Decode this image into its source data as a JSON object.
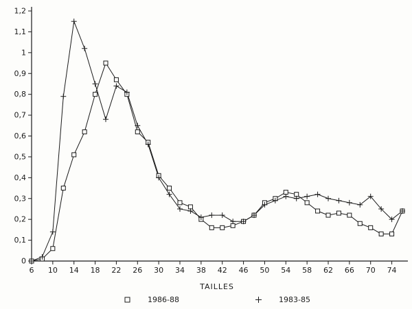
{
  "chart_data": {
    "type": "line",
    "title": "",
    "xlabel": "TAILLES",
    "ylabel": "",
    "xlim": [
      6,
      76
    ],
    "ylim": [
      0,
      1.2
    ],
    "grid": false,
    "legend_position": "bottom",
    "line_color": "#1a1a1a",
    "background": "#fdfdfb",
    "x_tick_labels": [
      "6",
      "10",
      "14",
      "18",
      "22",
      "26",
      "30",
      "34",
      "38",
      "42",
      "46",
      "50",
      "54",
      "58",
      "62",
      "66",
      "70",
      "74"
    ],
    "x_tick_values": [
      6,
      10,
      14,
      18,
      22,
      26,
      30,
      34,
      38,
      42,
      46,
      50,
      54,
      58,
      62,
      66,
      70,
      74
    ],
    "y_tick_values": [
      0,
      0.1,
      0.2,
      0.3,
      0.4,
      0.5,
      0.6,
      0.7,
      0.8,
      0.9,
      1.0,
      1.1,
      1.2
    ],
    "y_tick_labels": [
      "0",
      "0,1",
      "0,2",
      "0,3",
      "0,4",
      "0,5",
      "0,6",
      "0,7",
      "0,8",
      "0,9",
      "1",
      "1,1",
      "1,2"
    ],
    "x": [
      6,
      8,
      10,
      12,
      14,
      16,
      18,
      20,
      22,
      24,
      26,
      28,
      30,
      32,
      34,
      36,
      38,
      40,
      42,
      44,
      46,
      48,
      50,
      52,
      54,
      56,
      58,
      60,
      62,
      64,
      66,
      68,
      70,
      72,
      74,
      76
    ],
    "series": [
      {
        "name": "1986-88",
        "marker": "square",
        "values": [
          0,
          0.01,
          0.06,
          0.35,
          0.51,
          0.62,
          0.8,
          0.95,
          0.87,
          0.8,
          0.62,
          0.57,
          0.41,
          0.35,
          0.28,
          0.26,
          0.2,
          0.16,
          0.16,
          0.17,
          0.19,
          0.22,
          0.28,
          0.3,
          0.33,
          0.32,
          0.28,
          0.24,
          0.22,
          0.23,
          0.22,
          0.18,
          0.16,
          0.13,
          0.13,
          0.24
        ]
      },
      {
        "name": "1983-85",
        "marker": "plus",
        "values": [
          0,
          0.02,
          0.14,
          0.79,
          1.15,
          1.02,
          0.85,
          0.68,
          0.84,
          0.81,
          0.65,
          0.56,
          0.4,
          0.32,
          0.25,
          0.24,
          0.21,
          0.22,
          0.22,
          0.19,
          0.19,
          0.22,
          0.27,
          0.29,
          0.31,
          0.3,
          0.31,
          0.32,
          0.3,
          0.29,
          0.28,
          0.27,
          0.31,
          0.25,
          0.2,
          0.24
        ]
      }
    ]
  }
}
